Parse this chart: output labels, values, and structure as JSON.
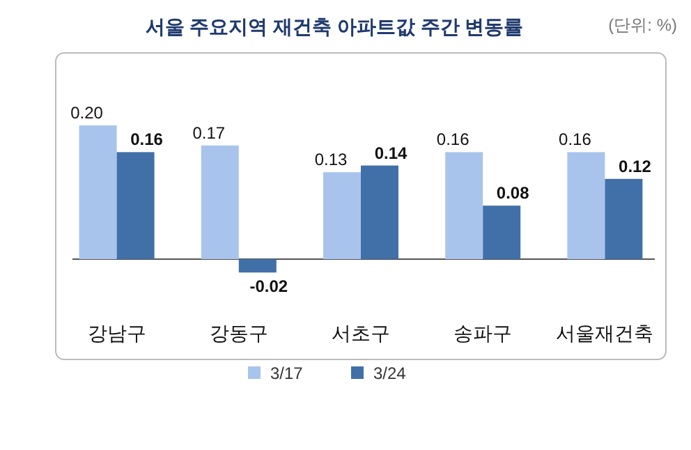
{
  "chart_data": {
    "type": "bar",
    "title": "서울 주요지역 재건축 아파트값 주간 변동률",
    "annotations": [
      "(단위: %)"
    ],
    "categories": [
      "강남구",
      "강동구",
      "서초구",
      "송파구",
      "서울재건축"
    ],
    "series": [
      {
        "name": "3/17",
        "color": "#a9c4ec",
        "values": [
          0.2,
          0.17,
          0.13,
          0.16,
          0.16
        ],
        "value_labels": [
          "0.20",
          "0.17",
          "0.13",
          "0.16",
          "0.16"
        ]
      },
      {
        "name": "3/24",
        "color": "#4170a9",
        "values": [
          0.16,
          -0.02,
          0.14,
          0.08,
          0.12
        ],
        "value_labels": [
          "0.16",
          "-0.02",
          "0.14",
          "0.08",
          "0.12"
        ]
      }
    ],
    "legend": "bottom"
  }
}
